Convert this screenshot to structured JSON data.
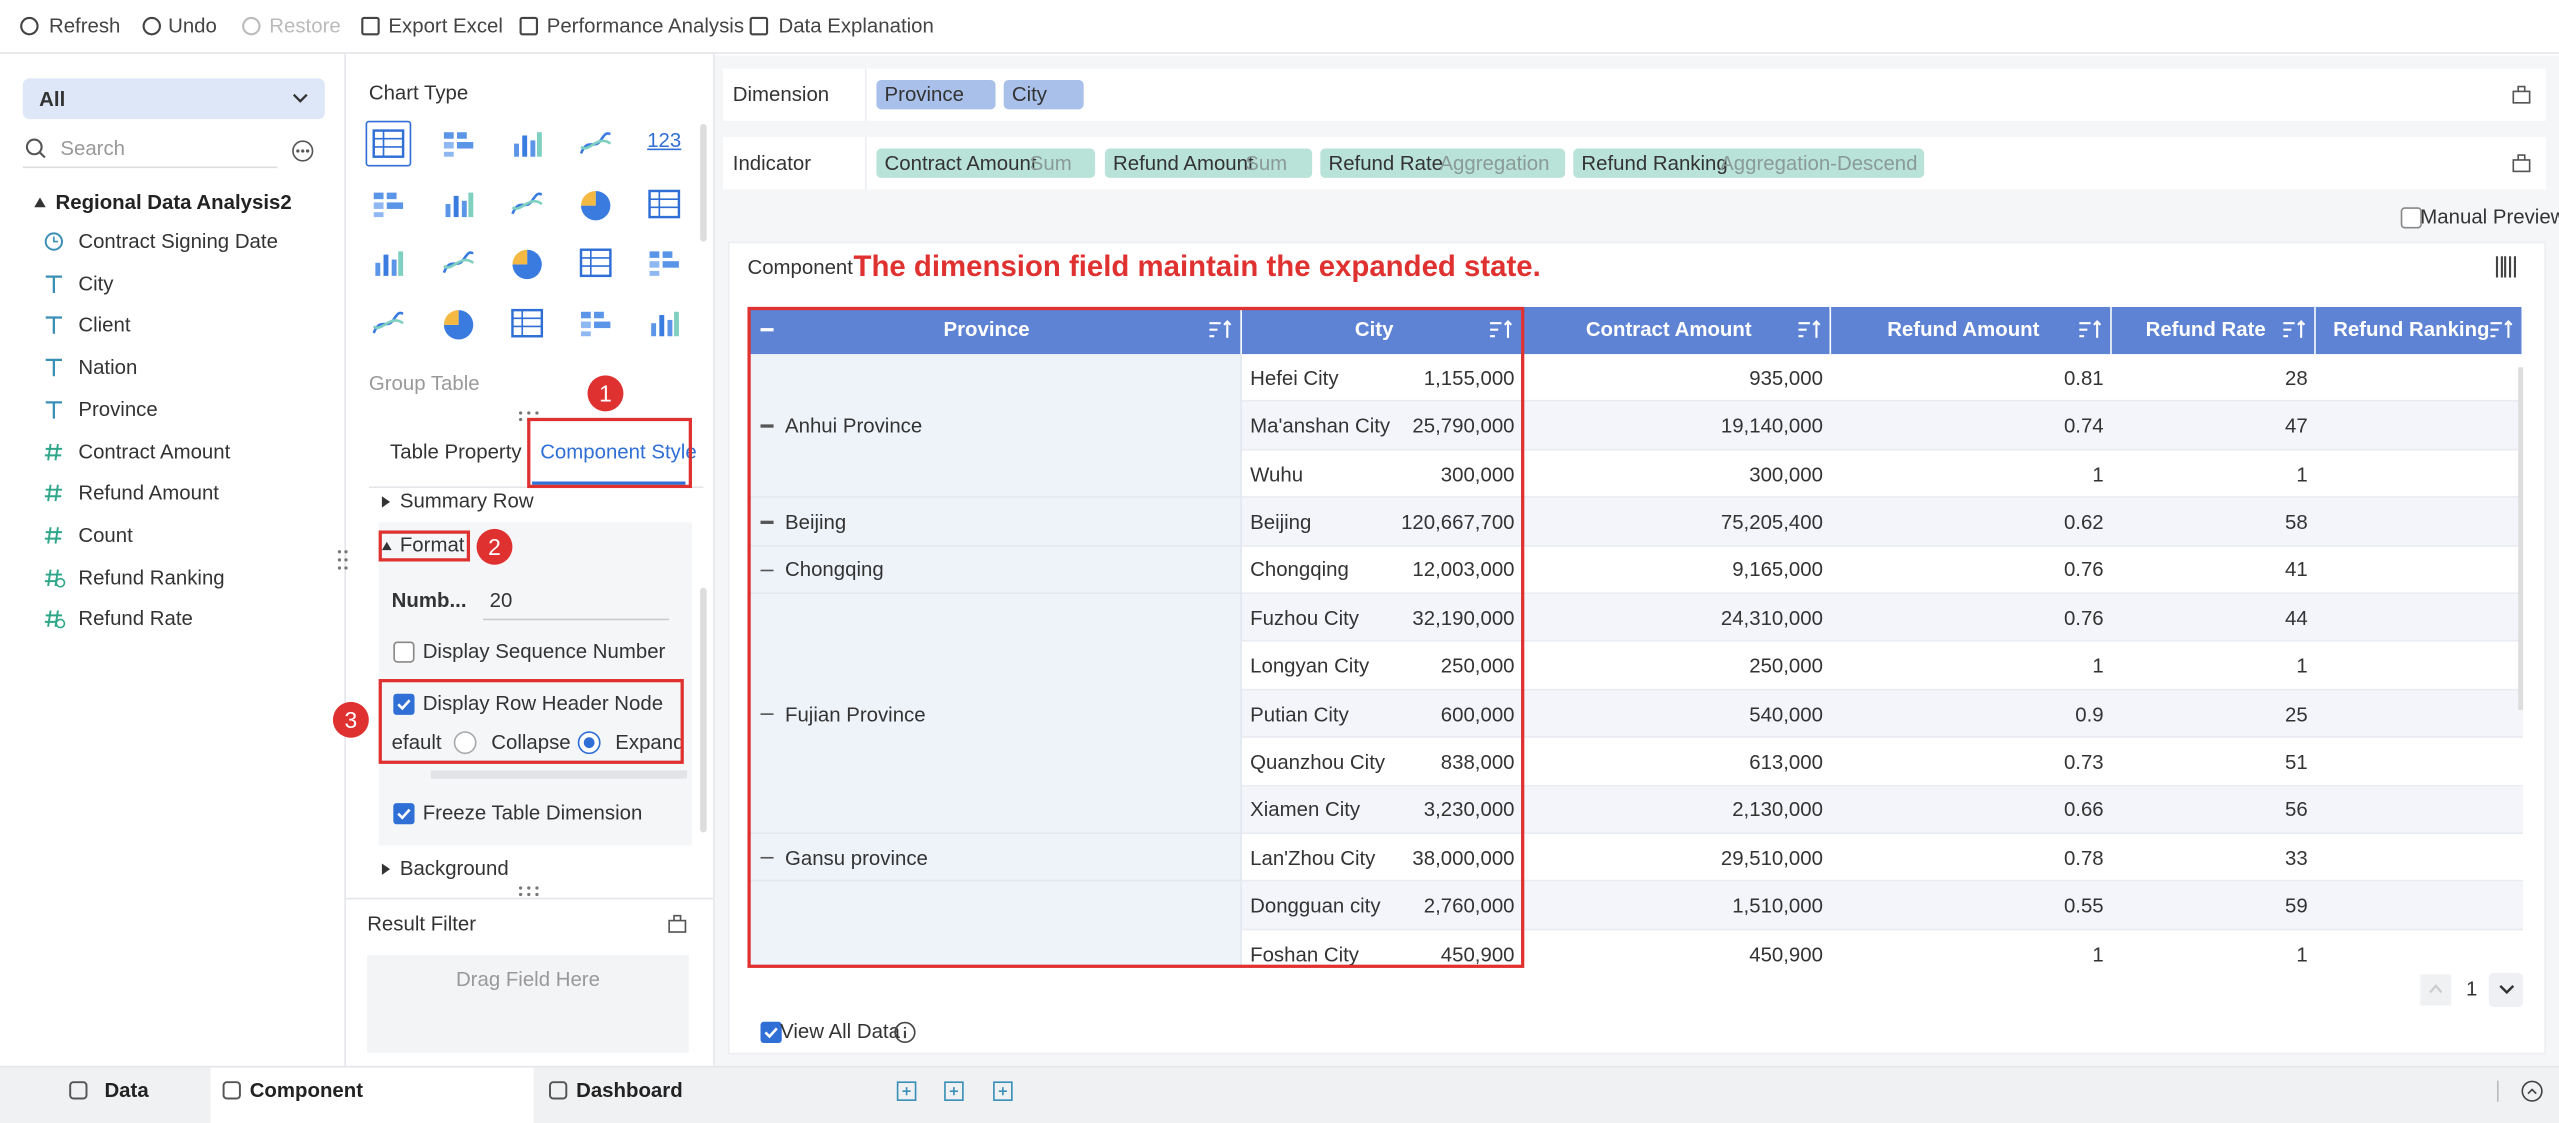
{
  "toolbar": {
    "items": [
      "Refresh",
      "Undo",
      "Restore",
      "Export Excel",
      "Performance Analysis",
      "Data Explanation"
    ]
  },
  "data_panel": {
    "selector": "All",
    "search_placeholder": "Search",
    "dataset": "Regional Data Analysis2",
    "fields": [
      {
        "kind": "date",
        "name": "Contract Signing Date"
      },
      {
        "kind": "text",
        "name": "City"
      },
      {
        "kind": "text",
        "name": "Client"
      },
      {
        "kind": "text",
        "name": "Nation"
      },
      {
        "kind": "text",
        "name": "Province"
      },
      {
        "kind": "number",
        "name": "Contract Amount"
      },
      {
        "kind": "number",
        "name": "Refund Amount"
      },
      {
        "kind": "number",
        "name": "Count"
      },
      {
        "kind": "calc",
        "name": "Refund Ranking"
      },
      {
        "kind": "calc",
        "name": "Refund Rate"
      }
    ]
  },
  "config_panel": {
    "chart_type_label": "Chart Type",
    "number_icon": "123",
    "group_table": "Group Table",
    "tabs": [
      "Table Property",
      "Component Style"
    ],
    "summary_row": "Summary Row",
    "format": "Format",
    "number_label": "Numb...",
    "number_value": "20",
    "display_sequence_number": "Display Sequence Number",
    "display_row_header_node": "Display Row Header Node",
    "default_label": "efault",
    "collapse": "Collapse",
    "expand": "Expand",
    "freeze": "Freeze Table Dimension",
    "background": "Background",
    "result_filter": "Result Filter",
    "drag_field": "Drag Field Here",
    "callouts": [
      "1",
      "2",
      "3"
    ]
  },
  "editor": {
    "dimension_label": "Dimension",
    "dimensions": [
      "Province",
      "City"
    ],
    "indicator_label": "Indicator",
    "indicators": [
      {
        "name": "Contract Amount",
        "agg": "Sum"
      },
      {
        "name": "Refund Amount",
        "agg": "Sum"
      },
      {
        "name": "Refund Rate",
        "agg": "Aggregation"
      },
      {
        "name": "Refund Ranking",
        "agg": "Aggregation-Descend"
      }
    ],
    "manual_preview": "Manual Preview",
    "component_label": "Component",
    "annotation": "The dimension field maintain the expanded state.",
    "table": {
      "columns": [
        "Province",
        "City",
        "Contract Amount",
        "Refund Amount",
        "Refund Rate",
        "Refund Ranking"
      ],
      "groups": [
        {
          "province": "Anhui Province",
          "rows": [
            [
              "Hefei City",
              "1,155,000",
              "935,000",
              "0.81",
              "28"
            ],
            [
              "Ma'anshan City",
              "25,790,000",
              "19,140,000",
              "0.74",
              "47"
            ],
            [
              "Wuhu",
              "300,000",
              "300,000",
              "1",
              "1"
            ]
          ]
        },
        {
          "province": "Beijing",
          "rows": [
            [
              "Beijing",
              "120,667,700",
              "75,205,400",
              "0.62",
              "58"
            ]
          ]
        },
        {
          "province": "Chongqing",
          "rows": [
            [
              "Chongqing",
              "12,003,000",
              "9,165,000",
              "0.76",
              "41"
            ]
          ]
        },
        {
          "province": "Fujian Province",
          "rows": [
            [
              "Fuzhou City",
              "32,190,000",
              "24,310,000",
              "0.76",
              "44"
            ],
            [
              "Longyan City",
              "250,000",
              "250,000",
              "1",
              "1"
            ],
            [
              "Putian City",
              "600,000",
              "540,000",
              "0.9",
              "25"
            ],
            [
              "Quanzhou City",
              "838,000",
              "613,000",
              "0.73",
              "51"
            ],
            [
              "Xiamen City",
              "3,230,000",
              "2,130,000",
              "0.66",
              "56"
            ]
          ]
        },
        {
          "province": "Gansu province",
          "rows": [
            [
              "Lan'Zhou City",
              "38,000,000",
              "29,510,000",
              "0.78",
              "33"
            ]
          ]
        },
        {
          "province": null,
          "rows": [
            [
              "Dongguan city",
              "2,760,000",
              "1,510,000",
              "0.55",
              "59"
            ],
            [
              "Foshan City",
              "450,900",
              "450,900",
              "1",
              "1"
            ]
          ]
        }
      ]
    },
    "page": "1",
    "view_all": "View All Data"
  },
  "bottom_bar": {
    "tabs": [
      "Data",
      "Component",
      "Dashboard"
    ]
  }
}
